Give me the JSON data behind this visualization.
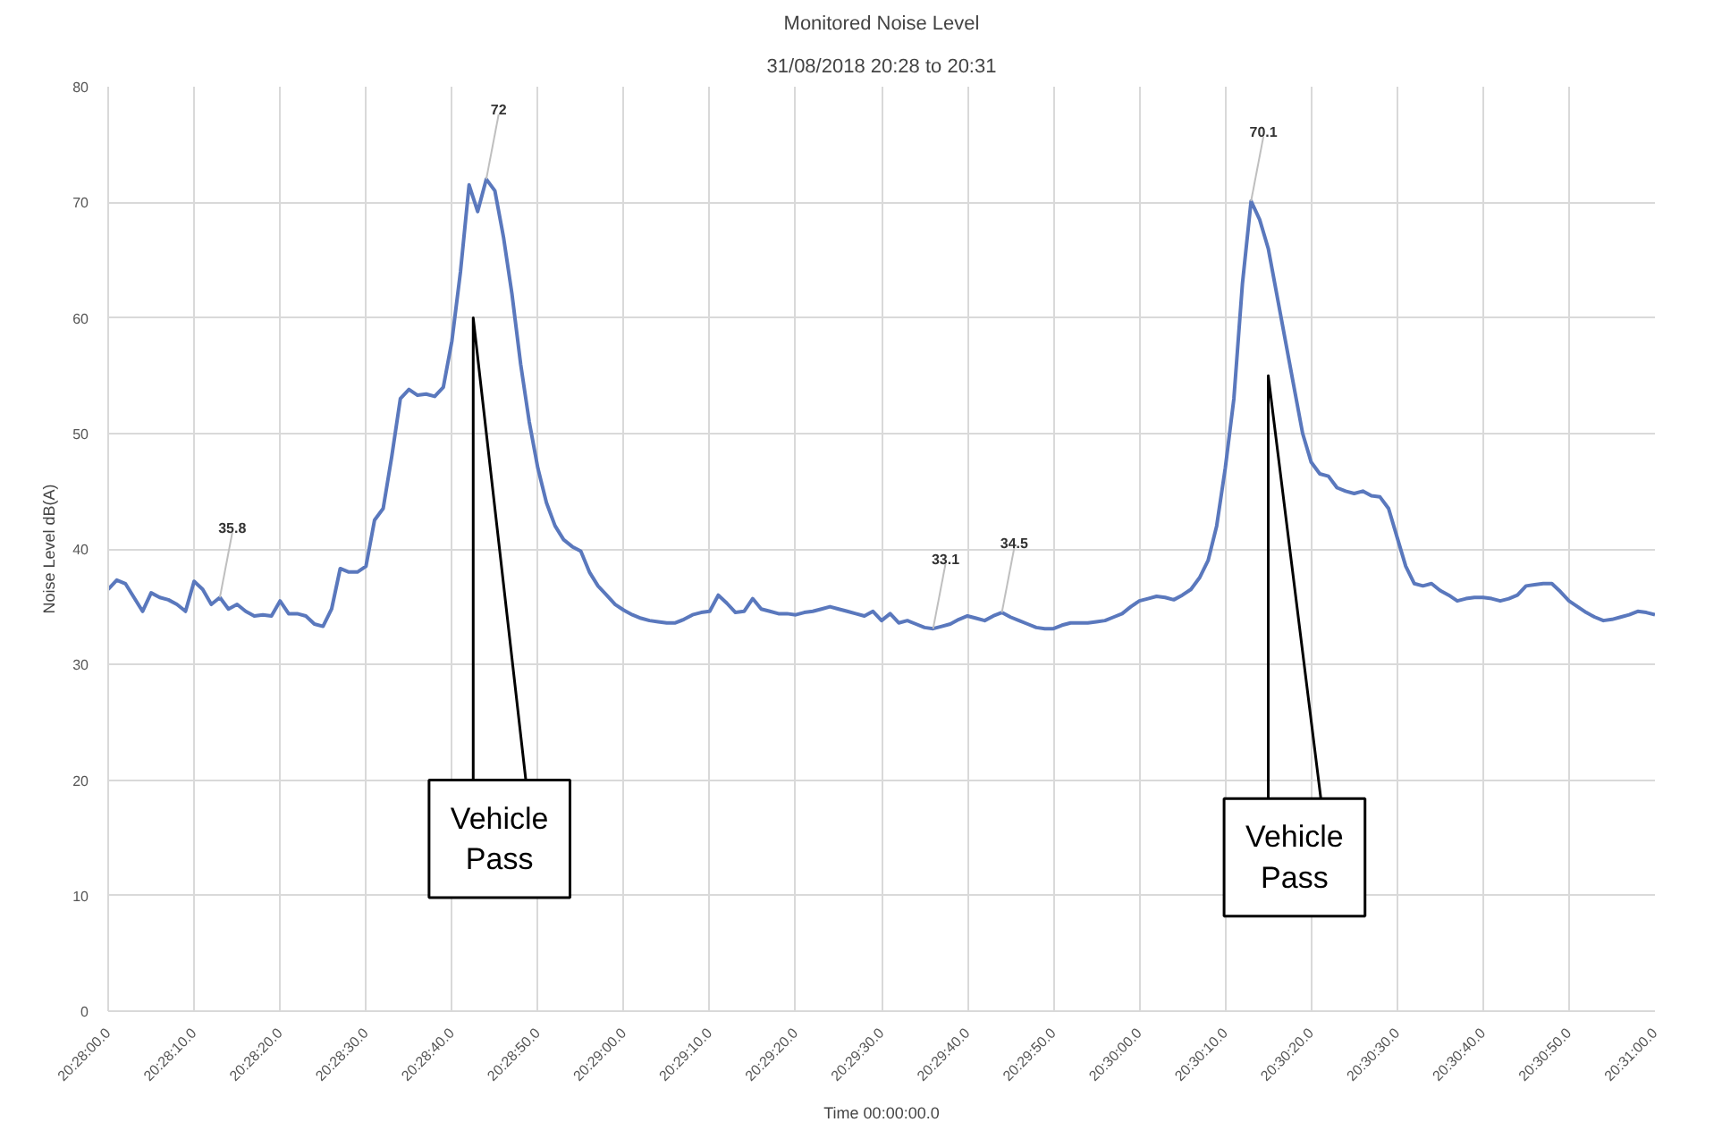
{
  "chart_data": {
    "type": "line",
    "title": "Monitored Noise Level",
    "subtitle": "31/08/2018 20:28 to 20:31",
    "xlabel": "Time 00:00:00.0",
    "ylabel": "Noise Level dB(A)",
    "categories": [
      "20:28:00.0",
      null,
      null,
      null,
      null,
      null,
      null,
      null,
      null,
      null,
      "20:28:10.0",
      null,
      null,
      null,
      null,
      null,
      null,
      null,
      null,
      null,
      "20:28:20.0",
      null,
      null,
      null,
      null,
      null,
      null,
      null,
      null,
      null,
      "20:28:30.0",
      null,
      null,
      null,
      null,
      null,
      null,
      null,
      null,
      null,
      "20:28:40.0",
      null,
      null,
      null,
      null,
      null,
      null,
      null,
      null,
      null,
      "20:28:50.0",
      null,
      null,
      null,
      null,
      null,
      null,
      null,
      null,
      null,
      "20:29:00.0",
      null,
      null,
      null,
      null,
      null,
      null,
      null,
      null,
      null,
      "20:29:10.0",
      null,
      null,
      null,
      null,
      null,
      null,
      null,
      null,
      null,
      "20:29:20.0",
      null,
      null,
      null,
      null,
      null,
      null,
      null,
      null,
      null,
      "20:29:30.0",
      null,
      null,
      null,
      null,
      null,
      null,
      null,
      null,
      null,
      "20:29:40.0",
      null,
      null,
      null,
      null,
      null,
      null,
      null,
      null,
      null,
      "20:29:50.0",
      null,
      null,
      null,
      null,
      null,
      null,
      null,
      null,
      null,
      "20:30:00.0",
      null,
      null,
      null,
      null,
      null,
      null,
      null,
      null,
      null,
      "20:30:10.0",
      null,
      null,
      null,
      null,
      null,
      null,
      null,
      null,
      null,
      "20:30:20.0",
      null,
      null,
      null,
      null,
      null,
      null,
      null,
      null,
      null,
      "20:30:30.0",
      null,
      null,
      null,
      null,
      null,
      null,
      null,
      null,
      null,
      "20:30:40.0",
      null,
      null,
      null,
      null,
      null,
      null,
      null,
      null,
      null,
      "20:30:50.0",
      null,
      null,
      null,
      null,
      null,
      null,
      null,
      null,
      null,
      "20:31:00.0"
    ],
    "series": [
      {
        "color": "#5a78bd",
        "values": [
          36.5,
          37.3,
          37.0,
          35.8,
          34.6,
          36.2,
          35.8,
          35.6,
          35.2,
          34.6,
          37.2,
          36.5,
          35.2,
          35.8,
          34.8,
          35.2,
          34.6,
          34.2,
          34.3,
          34.2,
          35.5,
          34.4,
          34.4,
          34.2,
          33.5,
          33.3,
          34.8,
          38.3,
          38.0,
          38.0,
          38.5,
          42.5,
          43.5,
          48,
          53,
          53.8,
          53.3,
          53.4,
          53.2,
          54,
          58,
          64,
          71.5,
          69.2,
          72,
          71,
          67,
          62,
          56,
          51,
          47,
          44,
          42,
          40.8,
          40.2,
          39.8,
          38,
          36.8,
          36,
          35.2,
          34.7,
          34.3,
          34.0,
          33.8,
          33.7,
          33.6,
          33.6,
          33.9,
          34.3,
          34.5,
          34.6,
          36.0,
          35.3,
          34.5,
          34.6,
          35.7,
          34.8,
          34.6,
          34.4,
          34.4,
          34.3,
          34.5,
          34.6,
          34.8,
          35,
          34.8,
          34.6,
          34.4,
          34.2,
          34.6,
          33.8,
          34.4,
          33.6,
          33.8,
          33.5,
          33.2,
          33.1,
          33.3,
          33.5,
          33.9,
          34.2,
          34.0,
          33.8,
          34.2,
          34.5,
          34.1,
          33.8,
          33.5,
          33.2,
          33.1,
          33.1,
          33.4,
          33.6,
          33.6,
          33.6,
          33.7,
          33.8,
          34.1,
          34.4,
          35.0,
          35.5,
          35.7,
          35.9,
          35.8,
          35.6,
          36.0,
          36.5,
          37.5,
          39,
          42,
          47,
          53,
          63,
          70.1,
          68.5,
          66,
          62,
          58,
          54,
          50,
          47.5,
          46.5,
          46.3,
          45.3,
          45,
          44.8,
          45,
          44.6,
          44.5,
          43.5,
          41,
          38.5,
          37,
          36.8,
          37,
          36.4,
          36,
          35.5,
          35.7,
          35.8,
          35.8,
          35.7,
          35.5,
          35.7,
          36,
          36.8,
          36.9,
          37,
          37,
          36.3,
          35.5,
          35.0,
          34.5,
          34.1,
          33.8,
          33.9,
          34.1,
          34.3,
          34.6,
          34.5,
          34.3
        ],
        "value_labels": [
          null,
          null,
          null,
          null,
          null,
          null,
          null,
          null,
          null,
          null,
          null,
          null,
          null,
          "35.8",
          null,
          null,
          null,
          null,
          null,
          null,
          null,
          null,
          null,
          null,
          null,
          null,
          null,
          null,
          null,
          null,
          null,
          null,
          null,
          null,
          null,
          null,
          null,
          null,
          null,
          null,
          null,
          null,
          null,
          null,
          "72",
          null,
          null,
          null,
          null,
          null,
          null,
          null,
          null,
          null,
          null,
          null,
          null,
          null,
          null,
          null,
          null,
          null,
          null,
          null,
          null,
          null,
          null,
          null,
          null,
          null,
          null,
          null,
          null,
          null,
          null,
          null,
          null,
          null,
          null,
          null,
          null,
          null,
          null,
          null,
          null,
          null,
          null,
          null,
          null,
          null,
          null,
          null,
          null,
          null,
          null,
          null,
          "33.1",
          null,
          null,
          null,
          null,
          null,
          null,
          null,
          "34.5",
          null,
          null,
          null,
          null,
          null,
          null,
          null,
          null,
          null,
          null,
          null,
          null,
          null,
          null,
          null,
          null,
          null,
          null,
          null,
          null,
          null,
          null,
          null,
          null,
          null,
          null,
          null,
          null,
          "70.1",
          null,
          null,
          null,
          null,
          null,
          null,
          null,
          null,
          null,
          null,
          null,
          null,
          null,
          null,
          null,
          null,
          null,
          null,
          null,
          null,
          null,
          null,
          null,
          null,
          null,
          null,
          null,
          null,
          null,
          null,
          null,
          null,
          null,
          null,
          null,
          null,
          null,
          null,
          null,
          null,
          null,
          null,
          null,
          null,
          null,
          null,
          null
        ]
      }
    ],
    "ylim": [
      0,
      80
    ],
    "yticks": [
      0,
      10,
      20,
      30,
      40,
      50,
      60,
      70,
      80
    ],
    "annotations": [
      "Vehicle\nPass",
      "Vehicle\nPass"
    ],
    "grid": true,
    "marker": "none",
    "line_style": "solid"
  }
}
